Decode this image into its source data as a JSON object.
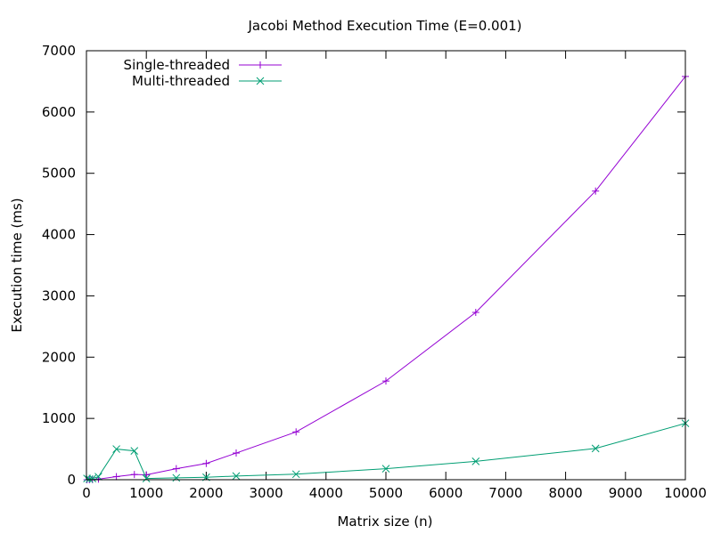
{
  "chart_data": {
    "type": "line",
    "title": "Jacobi Method Execution Time (E=0.001)",
    "xlabel": "Matrix size (n)",
    "ylabel": "Execution time (ms)",
    "xlim": [
      0,
      10000
    ],
    "ylim": [
      0,
      7000
    ],
    "x_ticks": [
      0,
      1000,
      2000,
      3000,
      4000,
      5000,
      6000,
      7000,
      8000,
      9000,
      10000
    ],
    "y_ticks": [
      0,
      1000,
      2000,
      3000,
      4000,
      5000,
      6000,
      7000
    ],
    "grid": false,
    "legend_position": "top-left",
    "series": [
      {
        "name": "Single-threaded",
        "color": "#9400d3",
        "marker": "plus",
        "x": [
          10,
          50,
          100,
          200,
          500,
          800,
          1000,
          1500,
          2000,
          2500,
          3500,
          5000,
          6500,
          8500,
          10000
        ],
        "y": [
          0,
          1,
          3,
          10,
          50,
          85,
          80,
          180,
          265,
          435,
          780,
          1610,
          2730,
          4710,
          6580
        ]
      },
      {
        "name": "Multi-threaded",
        "color": "#009e73",
        "marker": "cross",
        "x": [
          10,
          50,
          100,
          200,
          500,
          800,
          1000,
          1500,
          2000,
          2500,
          3500,
          5000,
          6500,
          8500,
          10000
        ],
        "y": [
          20,
          10,
          20,
          50,
          500,
          470,
          20,
          30,
          40,
          60,
          90,
          180,
          300,
          510,
          920
        ]
      }
    ]
  }
}
